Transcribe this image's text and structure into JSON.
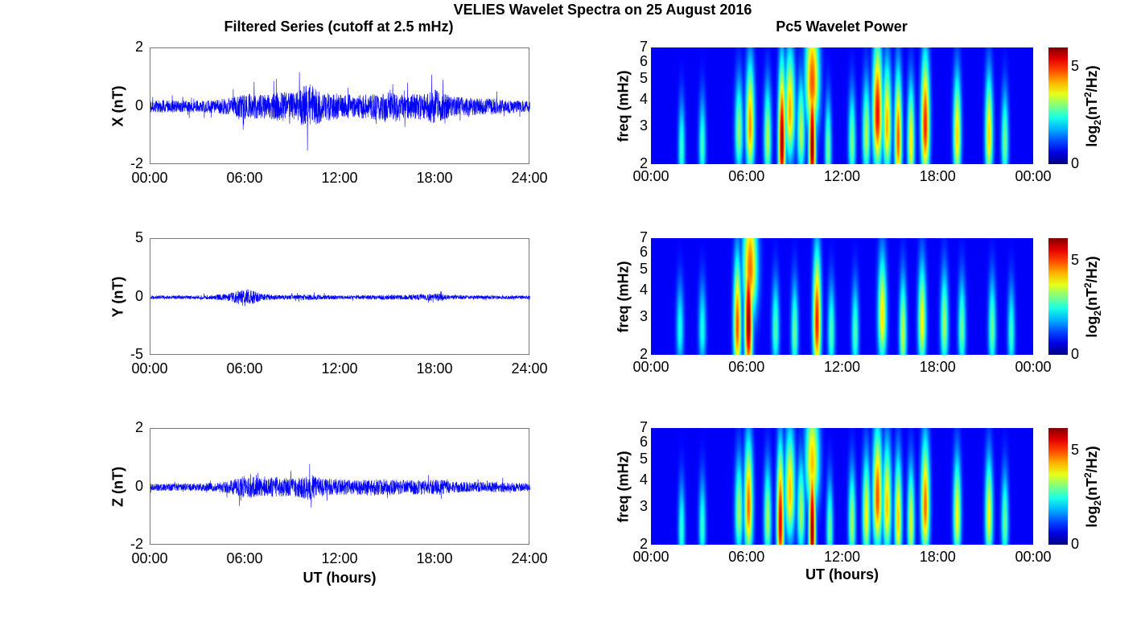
{
  "title": "VELIES Wavelet Spectra on 25 August 2016",
  "left_title": "Filtered Series (cutoff at 2.5 mHz)",
  "right_title": "Pc5 Wavelet Power",
  "colors": {
    "line": "#0000ff",
    "background": "#000080"
  },
  "chart_data": [
    {
      "type": "line",
      "name": "X",
      "ylabel": "X (nT)",
      "ylim": [
        -2,
        2
      ],
      "yticks": [
        "-2",
        "0",
        "2"
      ],
      "xlim": [
        0,
        24
      ],
      "xticks": [
        "00:00",
        "06:00",
        "12:00",
        "18:00",
        "24:00"
      ],
      "xlabel": "",
      "amplitude_envelope_hours": [
        0,
        1,
        2,
        3,
        4,
        5,
        6,
        7,
        8,
        9,
        10,
        11,
        12,
        13,
        14,
        15,
        16,
        17,
        18,
        19,
        20,
        21,
        22,
        23,
        24
      ],
      "amplitude_envelope_nT": [
        0.2,
        0.22,
        0.2,
        0.2,
        0.22,
        0.3,
        0.45,
        0.4,
        0.5,
        0.5,
        0.8,
        0.5,
        0.45,
        0.4,
        0.45,
        0.5,
        0.4,
        0.45,
        0.6,
        0.35,
        0.3,
        0.3,
        0.28,
        0.22,
        0.2
      ],
      "seed": 11
    },
    {
      "type": "line",
      "name": "Y",
      "ylabel": "Y (nT)",
      "ylim": [
        -5,
        5
      ],
      "yticks": [
        "-5",
        "0",
        "5"
      ],
      "xlim": [
        0,
        24
      ],
      "xticks": [
        "00:00",
        "06:00",
        "12:00",
        "18:00",
        "24:00"
      ],
      "xlabel": "",
      "amplitude_envelope_hours": [
        0,
        1,
        2,
        3,
        4,
        5,
        6,
        7,
        8,
        9,
        10,
        11,
        12,
        13,
        14,
        15,
        16,
        17,
        18,
        19,
        20,
        21,
        22,
        23,
        24
      ],
      "amplitude_envelope_nT": [
        0.15,
        0.15,
        0.15,
        0.15,
        0.2,
        0.35,
        0.8,
        0.3,
        0.2,
        0.2,
        0.25,
        0.2,
        0.15,
        0.15,
        0.2,
        0.2,
        0.2,
        0.25,
        0.35,
        0.2,
        0.15,
        0.15,
        0.15,
        0.15,
        0.15
      ],
      "seed": 23
    },
    {
      "type": "line",
      "name": "Z",
      "ylabel": "Z (nT)",
      "ylim": [
        -2,
        2
      ],
      "yticks": [
        "-2",
        "0",
        "2"
      ],
      "xlim": [
        0,
        24
      ],
      "xticks": [
        "00:00",
        "06:00",
        "12:00",
        "18:00",
        "24:00"
      ],
      "xlabel": "UT (hours)",
      "amplitude_envelope_hours": [
        0,
        1,
        2,
        3,
        4,
        5,
        6,
        7,
        8,
        9,
        10,
        11,
        12,
        13,
        14,
        15,
        16,
        17,
        18,
        19,
        20,
        21,
        22,
        23,
        24
      ],
      "amplitude_envelope_nT": [
        0.12,
        0.13,
        0.12,
        0.13,
        0.15,
        0.22,
        0.4,
        0.3,
        0.35,
        0.3,
        0.45,
        0.3,
        0.28,
        0.25,
        0.3,
        0.28,
        0.25,
        0.25,
        0.28,
        0.2,
        0.18,
        0.18,
        0.18,
        0.15,
        0.12
      ],
      "seed": 37
    },
    {
      "type": "heatmap",
      "name": "X power",
      "ylabel": "freq (mHz)",
      "yscale": "log",
      "ylim": [
        2,
        7
      ],
      "yticks": [
        "2",
        "3",
        "4",
        "5",
        "6",
        "7"
      ],
      "xlim": [
        0,
        24
      ],
      "xticks": [
        "00:00",
        "06:00",
        "12:00",
        "18:00",
        "00:00"
      ],
      "xlabel": "",
      "colorbar": {
        "label": "log2(nT2/Hz)",
        "label_base": "log",
        "label_sub": "2",
        "label_mid": "(nT",
        "label_sup": "2",
        "label_end": "/Hz)",
        "range": [
          0,
          6
        ],
        "ticks": [
          "0",
          "5"
        ],
        "colormap": "jet"
      },
      "bursts": [
        [
          1.9,
          2.3,
          2.2
        ],
        [
          3.2,
          2.4,
          2.2
        ],
        [
          5.5,
          2.8,
          2.8
        ],
        [
          6.2,
          3,
          4.2
        ],
        [
          7.3,
          2.6,
          3
        ],
        [
          8.2,
          2.5,
          5.9
        ],
        [
          8.7,
          3.5,
          4
        ],
        [
          9.4,
          2.8,
          3
        ],
        [
          10.1,
          2.4,
          6
        ],
        [
          10.1,
          4.8,
          4.6
        ],
        [
          11.1,
          2.3,
          2.6
        ],
        [
          12.6,
          2.5,
          2.6
        ],
        [
          13.5,
          2.7,
          3
        ],
        [
          14.2,
          3.4,
          5.2
        ],
        [
          14.8,
          3,
          4
        ],
        [
          15.5,
          2.6,
          4.6
        ],
        [
          16.3,
          2.5,
          3.6
        ],
        [
          17.2,
          3,
          5
        ],
        [
          19.2,
          2.7,
          3.8
        ],
        [
          21.2,
          2.7,
          3.8
        ],
        [
          22.2,
          2.5,
          2.6
        ]
      ]
    },
    {
      "type": "heatmap",
      "name": "Y power",
      "ylabel": "freq (mHz)",
      "yscale": "log",
      "ylim": [
        2,
        7
      ],
      "yticks": [
        "2",
        "3",
        "4",
        "5",
        "6",
        "7"
      ],
      "xlim": [
        0,
        24
      ],
      "xticks": [
        "00:00",
        "06:00",
        "12:00",
        "18:00",
        "00:00"
      ],
      "xlabel": "",
      "colorbar": {
        "label": "log2(nT2/Hz)",
        "label_base": "log",
        "label_sub": "2",
        "label_mid": "(nT",
        "label_sup": "2",
        "label_end": "/Hz)",
        "range": [
          0,
          6.2
        ],
        "ticks": [
          "0",
          "5"
        ],
        "colormap": "jet"
      },
      "bursts": [
        [
          1.8,
          2.6,
          2
        ],
        [
          3.2,
          2.6,
          2
        ],
        [
          5.4,
          2.7,
          4.8
        ],
        [
          6.1,
          2.8,
          6.2
        ],
        [
          6.2,
          5,
          4.6
        ],
        [
          7.8,
          2.6,
          2.4
        ],
        [
          9.0,
          2.5,
          2.6
        ],
        [
          10.4,
          2.8,
          5.2
        ],
        [
          11.3,
          2.5,
          2.4
        ],
        [
          12.8,
          2.5,
          2.4
        ],
        [
          14.5,
          3,
          3.8
        ],
        [
          15.8,
          2.5,
          3.2
        ],
        [
          17,
          2.8,
          3.6
        ],
        [
          18.4,
          2.7,
          3
        ],
        [
          19.5,
          2.6,
          2.6
        ],
        [
          21.4,
          2.6,
          2.6
        ],
        [
          22.6,
          2.5,
          2.2
        ]
      ]
    },
    {
      "type": "heatmap",
      "name": "Z power",
      "ylabel": "freq (mHz)",
      "yscale": "log",
      "ylim": [
        2,
        7
      ],
      "yticks": [
        "2",
        "3",
        "4",
        "5",
        "6",
        "7"
      ],
      "xlim": [
        0,
        24
      ],
      "xticks": [
        "00:00",
        "06:00",
        "12:00",
        "18:00",
        "00:00"
      ],
      "xlabel": "UT (hours)",
      "colorbar": {
        "label": "log2(nT2/Hz)",
        "label_base": "log",
        "label_sub": "2",
        "label_mid": "(nT",
        "label_sup": "2",
        "label_end": "/Hz)",
        "range": [
          0,
          6.2
        ],
        "ticks": [
          "0",
          "5"
        ],
        "colormap": "jet"
      },
      "bursts": [
        [
          1.9,
          2.3,
          2.2
        ],
        [
          3.2,
          2.4,
          2.2
        ],
        [
          5.5,
          2.8,
          3
        ],
        [
          6.1,
          3,
          4.6
        ],
        [
          7.3,
          2.6,
          3
        ],
        [
          8.1,
          2.5,
          5.6
        ],
        [
          8.7,
          3.5,
          4
        ],
        [
          9.4,
          2.8,
          3
        ],
        [
          10.1,
          2.3,
          6.2
        ],
        [
          10.1,
          4.8,
          4
        ],
        [
          11.2,
          2.3,
          2.6
        ],
        [
          12.6,
          2.5,
          3
        ],
        [
          13.5,
          2.7,
          3.6
        ],
        [
          14.2,
          3.3,
          4.8
        ],
        [
          14.8,
          3,
          4
        ],
        [
          15.5,
          2.6,
          4
        ],
        [
          16.3,
          2.5,
          3.4
        ],
        [
          17.2,
          3,
          4.6
        ],
        [
          19.2,
          2.7,
          3.6
        ],
        [
          21.2,
          2.7,
          3.6
        ],
        [
          22.2,
          2.5,
          2.6
        ]
      ]
    }
  ]
}
